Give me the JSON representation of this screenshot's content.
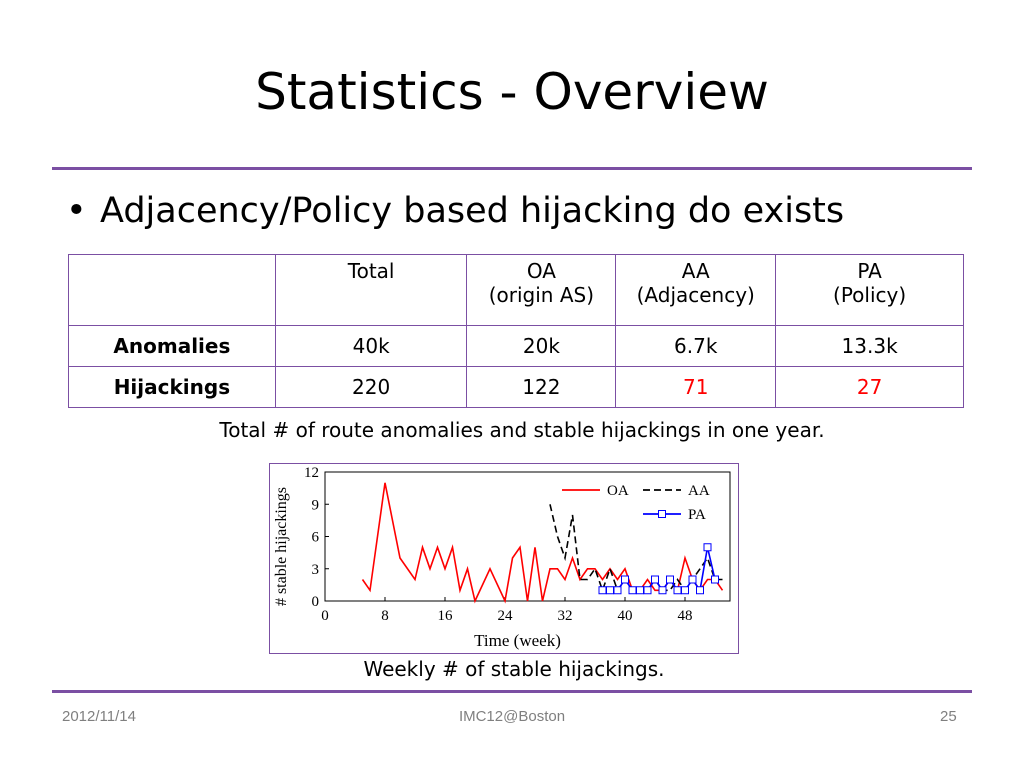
{
  "slide": {
    "title": "Statistics - Overview",
    "bullet": "Adjacency/Policy based hijacking do exists",
    "bullet_marker": "•"
  },
  "table": {
    "headers": [
      {
        "line1": "",
        "line2": ""
      },
      {
        "line1": "Total",
        "line2": ""
      },
      {
        "line1": "OA",
        "line2": "(origin AS)"
      },
      {
        "line1": "AA",
        "line2": "(Adjacency)"
      },
      {
        "line1": "PA",
        "line2": "(Policy)"
      }
    ],
    "rows": [
      {
        "label": "Anomalies",
        "cells": [
          "40k",
          "20k",
          "6.7k",
          "13.3k"
        ]
      },
      {
        "label": "Hijackings",
        "cells": [
          "220",
          "122",
          "71",
          "27"
        ]
      }
    ],
    "highlight_color": "#ff0000",
    "caption": "Total # of route anomalies and stable hijackings in one year."
  },
  "chart_caption": "Weekly # of stable hijackings.",
  "chart_data": {
    "type": "line",
    "xlabel": "Time (week)",
    "ylabel": "# stable hijackings",
    "xlim": [
      0,
      54
    ],
    "ylim": [
      0,
      12
    ],
    "xticks": [
      0,
      8,
      16,
      24,
      32,
      40,
      48
    ],
    "yticks": [
      0,
      3,
      6,
      9,
      12
    ],
    "legend_position": "top-right",
    "series": [
      {
        "name": "OA",
        "color": "#ff0000",
        "style": "solid",
        "marker": "none",
        "x": [
          5,
          6,
          8,
          10,
          12,
          13,
          14,
          15,
          16,
          17,
          18,
          19,
          20,
          22,
          24,
          25,
          26,
          27,
          28,
          29,
          30,
          31,
          32,
          33,
          34,
          35,
          36,
          37,
          38,
          39,
          40,
          41,
          42,
          43,
          44,
          45,
          46,
          47,
          48,
          49,
          50,
          51,
          52,
          53
        ],
        "y": [
          2,
          1,
          11,
          4,
          2,
          5,
          3,
          5,
          3,
          5,
          1,
          3,
          0,
          3,
          0,
          4,
          5,
          0,
          5,
          0,
          3,
          3,
          2,
          4,
          2,
          3,
          3,
          2,
          3,
          2,
          3,
          1,
          1,
          2,
          1,
          1,
          2,
          1,
          4,
          2,
          1,
          2,
          2,
          1
        ]
      },
      {
        "name": "AA",
        "color": "#000000",
        "style": "dashed",
        "marker": "none",
        "x": [
          30,
          31,
          32,
          33,
          34,
          35,
          36,
          37,
          38,
          39,
          40,
          41,
          42,
          43,
          44,
          45,
          46,
          47,
          48,
          49,
          50,
          51,
          52,
          53
        ],
        "y": [
          9,
          6,
          4,
          8,
          2,
          2,
          3,
          1,
          3,
          1,
          2,
          1,
          1,
          1,
          2,
          1,
          1,
          2,
          1,
          2,
          3,
          4,
          2,
          2
        ]
      },
      {
        "name": "PA",
        "color": "#0000ff",
        "style": "solid",
        "marker": "square",
        "x": [
          37,
          38,
          39,
          40,
          41,
          42,
          43,
          44,
          45,
          46,
          47,
          48,
          49,
          50,
          51,
          52
        ],
        "y": [
          1,
          1,
          1,
          2,
          1,
          1,
          1,
          2,
          1,
          2,
          1,
          1,
          2,
          1,
          5,
          2
        ]
      }
    ]
  },
  "footer": {
    "date": "2012/11/14",
    "venue": "IMC12@Boston",
    "page": "25"
  }
}
